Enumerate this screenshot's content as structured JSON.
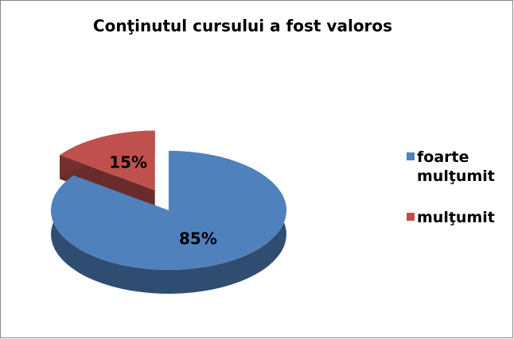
{
  "chart_data": {
    "type": "pie3d",
    "title": "Conţinutul cursului a fost valoros",
    "categories": [
      "foarte mulţumit",
      "mulţumit"
    ],
    "values": [
      85,
      15
    ],
    "value_labels": [
      "85%",
      "15%"
    ],
    "colors": [
      "#4f81bd",
      "#c0504d"
    ],
    "legend": "right"
  }
}
